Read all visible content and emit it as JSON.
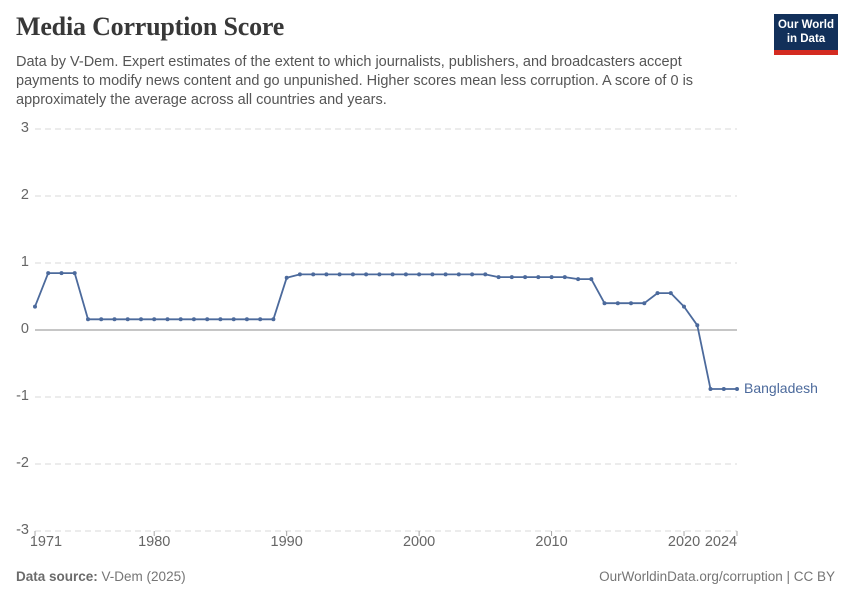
{
  "header": {
    "title": "Media Corruption Score",
    "subtitle": "Data by V-Dem. Expert estimates of the extent to which journalists, publishers, and broadcasters accept payments to modify news content and go unpunished. Higher scores mean less corruption. A score of 0 is approximately the average across all countries and years.",
    "logo": {
      "line1": "Our World",
      "line2": "in Data",
      "bg_color": "#12305a",
      "accent_color": "#d42b21"
    }
  },
  "chart_data": {
    "type": "line",
    "title": "Media Corruption Score",
    "xlabel": "",
    "ylabel": "",
    "xlim": [
      1971,
      2024
    ],
    "ylim": [
      -3,
      3
    ],
    "grid": "horizontal-dashed",
    "zero_line": true,
    "legend_position": "end-of-line",
    "y_ticks": [
      3,
      2,
      1,
      0,
      -1,
      -2,
      -3
    ],
    "x_ticks": [
      1971,
      1980,
      1990,
      2000,
      2010,
      2020,
      2024
    ],
    "colors": {
      "line": "#4C6A9C",
      "grid": "#d9d9d9",
      "zero_line": "#a5a5a5",
      "tick_mark": "#a5a5a5",
      "axis_text": "#666666"
    },
    "series": [
      {
        "name": "Bangladesh",
        "color": "#4C6A9C",
        "points": [
          [
            1971,
            0.35
          ],
          [
            1972,
            0.85
          ],
          [
            1973,
            0.85
          ],
          [
            1974,
            0.85
          ],
          [
            1975,
            0.16
          ],
          [
            1976,
            0.16
          ],
          [
            1977,
            0.16
          ],
          [
            1978,
            0.16
          ],
          [
            1979,
            0.16
          ],
          [
            1980,
            0.16
          ],
          [
            1981,
            0.16
          ],
          [
            1982,
            0.16
          ],
          [
            1983,
            0.16
          ],
          [
            1984,
            0.16
          ],
          [
            1985,
            0.16
          ],
          [
            1986,
            0.16
          ],
          [
            1987,
            0.16
          ],
          [
            1988,
            0.16
          ],
          [
            1989,
            0.16
          ],
          [
            1990,
            0.78
          ],
          [
            1991,
            0.83
          ],
          [
            1992,
            0.83
          ],
          [
            1993,
            0.83
          ],
          [
            1994,
            0.83
          ],
          [
            1995,
            0.83
          ],
          [
            1996,
            0.83
          ],
          [
            1997,
            0.83
          ],
          [
            1998,
            0.83
          ],
          [
            1999,
            0.83
          ],
          [
            2000,
            0.83
          ],
          [
            2001,
            0.83
          ],
          [
            2002,
            0.83
          ],
          [
            2003,
            0.83
          ],
          [
            2004,
            0.83
          ],
          [
            2005,
            0.83
          ],
          [
            2006,
            0.79
          ],
          [
            2007,
            0.79
          ],
          [
            2008,
            0.79
          ],
          [
            2009,
            0.79
          ],
          [
            2010,
            0.79
          ],
          [
            2011,
            0.79
          ],
          [
            2012,
            0.76
          ],
          [
            2013,
            0.76
          ],
          [
            2014,
            0.4
          ],
          [
            2015,
            0.4
          ],
          [
            2016,
            0.4
          ],
          [
            2017,
            0.4
          ],
          [
            2018,
            0.55
          ],
          [
            2019,
            0.55
          ],
          [
            2020,
            0.35
          ],
          [
            2021,
            0.07
          ],
          [
            2022,
            -0.88
          ],
          [
            2023,
            -0.88
          ],
          [
            2024,
            -0.88
          ]
        ]
      }
    ]
  },
  "footer": {
    "source_label": "Data source:",
    "source_value": "V-Dem (2025)",
    "attribution": "OurWorldinData.org/corruption | CC BY"
  }
}
